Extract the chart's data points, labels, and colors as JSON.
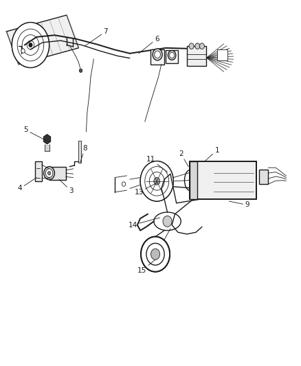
{
  "bg_color": "#ffffff",
  "line_color": "#1a1a1a",
  "label_color": "#1a1a1a",
  "fig_width": 4.39,
  "fig_height": 5.33,
  "dpi": 100,
  "font_size": 7.5,
  "lw_main": 1.0,
  "lw_thin": 0.6,
  "lw_thick": 1.4,
  "label_positions": {
    "7": [
      0.35,
      0.915,
      0.28,
      0.875
    ],
    "6": [
      0.52,
      0.895,
      0.46,
      0.855
    ],
    "5": [
      0.085,
      0.645,
      0.155,
      0.615
    ],
    "8": [
      0.28,
      0.595,
      0.265,
      0.555
    ],
    "4": [
      0.065,
      0.485,
      0.12,
      0.515
    ],
    "3": [
      0.235,
      0.478,
      0.195,
      0.51
    ],
    "13": [
      0.46,
      0.475,
      0.52,
      0.5
    ],
    "11": [
      0.5,
      0.565,
      0.555,
      0.53
    ],
    "2": [
      0.6,
      0.58,
      0.625,
      0.545
    ],
    "1": [
      0.72,
      0.59,
      0.68,
      0.56
    ],
    "9": [
      0.82,
      0.44,
      0.76,
      0.45
    ],
    "14": [
      0.44,
      0.385,
      0.53,
      0.405
    ],
    "15": [
      0.47,
      0.26,
      0.515,
      0.29
    ]
  }
}
